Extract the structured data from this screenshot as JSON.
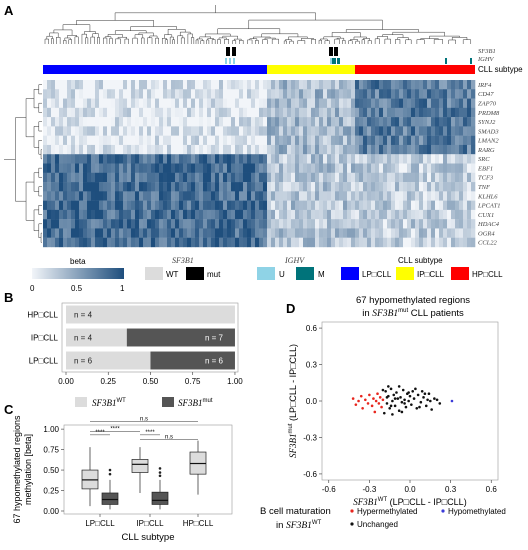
{
  "panel_labels": {
    "a": "A",
    "b": "B",
    "c": "C",
    "d": "D"
  },
  "heatmap": {
    "annotation_rows": [
      "SF3B1",
      "IGHV",
      "CLL subtype"
    ],
    "genes": [
      "IRF4",
      "CD47",
      "ZAP70",
      "PRDM8",
      "SYNJ2",
      "SMAD3",
      "LMAN2",
      "RARG",
      "SRC",
      "EBF1",
      "TCF3",
      "TNF",
      "KLHL6",
      "LPCAT1",
      "CUX1",
      "HDAC4",
      "OGR4",
      "CCL22"
    ],
    "subtype_fractions": {
      "LP-CLL": 0.52,
      "IP-CLL": 0.2,
      "HP-CLL": 0.28
    },
    "colors": {
      "low": "#f2f5f9",
      "high": "#1e4e7d",
      "lp": "#0000ff",
      "ip": "#ffff00",
      "hp": "#ff0000",
      "wt": "#dcdcdc",
      "mut": "#000000",
      "u": "#8fd3e6",
      "m": "#00737a"
    }
  },
  "legends": {
    "beta_title": "beta",
    "beta_ticks": [
      "0",
      "0.5",
      "1"
    ],
    "sf3b1_title": "SF3B1",
    "sf3b1_wt": "WT",
    "sf3b1_mut": "mut",
    "ighv_title": "IGHV",
    "ighv_u": "U",
    "ighv_m": "M",
    "cll_title": "CLL subtype",
    "cll_lp": "LP□CLL",
    "cll_ip": "IP□CLL",
    "cll_hp": "HP□CLL"
  },
  "chart_data": [
    {
      "type": "bar",
      "panel": "B",
      "stacked": true,
      "orientation": "horizontal",
      "categories": [
        "HP□CLL",
        "IP□CLL",
        "LP□CLL"
      ],
      "series": [
        {
          "name": "SF3B1 WT",
          "values": [
            1.0,
            0.36,
            0.5
          ],
          "counts": [
            "n = 4",
            "n = 4",
            "n = 6"
          ]
        },
        {
          "name": "SF3B1 mut",
          "values": [
            0.0,
            0.64,
            0.5
          ],
          "counts": [
            "",
            "n = 7",
            "n = 6"
          ]
        }
      ],
      "xlim": [
        0,
        1
      ],
      "xticks": [
        "0.00",
        "0.25",
        "0.50",
        "0.75",
        "1.00"
      ],
      "legend": {
        "wt_label": "SF3B1",
        "wt_sup": "WT",
        "mut_label": "SF3B1",
        "mut_sup": "mut"
      }
    },
    {
      "type": "box",
      "panel": "C",
      "title": "",
      "ylabel_line1": "67 hypomethylated regions",
      "ylabel_line2": "methylation [beta]",
      "xlabel": "CLL subtype",
      "categories": [
        "LP□CLL",
        "IP□CLL",
        "HP□CLL"
      ],
      "ylim": [
        0,
        1
      ],
      "yticks": [
        "0.00",
        "0.25",
        "0.50",
        "0.75",
        "1.00"
      ],
      "boxes": [
        {
          "group": "LP□CLL",
          "kind": "WT",
          "min": 0.06,
          "q1": 0.27,
          "median": 0.38,
          "q3": 0.5,
          "max": 0.78
        },
        {
          "group": "LP□CLL",
          "kind": "mut",
          "min": 0.02,
          "q1": 0.08,
          "median": 0.14,
          "q3": 0.22,
          "max": 0.38,
          "outliers": [
            0.45,
            0.5
          ]
        },
        {
          "group": "IP□CLL",
          "kind": "WT",
          "min": 0.22,
          "q1": 0.47,
          "median": 0.57,
          "q3": 0.63,
          "max": 0.78
        },
        {
          "group": "IP□CLL",
          "kind": "mut",
          "min": 0.02,
          "q1": 0.08,
          "median": 0.13,
          "q3": 0.23,
          "max": 0.38,
          "outliers": [
            0.43,
            0.47,
            0.52
          ]
        },
        {
          "group": "HP□CLL",
          "kind": "WT",
          "min": 0.2,
          "q1": 0.45,
          "median": 0.58,
          "q3": 0.72,
          "max": 0.86
        }
      ],
      "significance": [
        "****",
        "****",
        "****",
        "n.s",
        "n.s"
      ]
    },
    {
      "type": "scatter",
      "panel": "D",
      "title_line1": "67 hypomethylated regions",
      "title_line2_italic": "SF3B1",
      "title_line2_sup": "mut",
      "title_line2_pre": "in ",
      "title_line2_post": " CLL patients",
      "xlabel_italic": "SF3B1",
      "xlabel_sup": "WT",
      "xlabel_rest": "(LP□CLL - IP□CLL)",
      "ylabel_italic": "SF3B1",
      "ylabel_sup": "mut",
      "ylabel_rest": "(LP□CLL - IP□CLL)",
      "xlim": [
        -0.65,
        0.65
      ],
      "ylim": [
        -0.65,
        0.65
      ],
      "xticks": [
        "-0.6",
        "-0.3",
        "0.0",
        "0.3",
        "0.6"
      ],
      "yticks": [
        "-0.6",
        "-0.3",
        "0.0",
        "0.3",
        "0.6"
      ],
      "series": [
        {
          "name": "Hypermethylated",
          "color": "#e8261e",
          "points": [
            [
              -0.42,
              0.02
            ],
            [
              -0.4,
              -0.03
            ],
            [
              -0.38,
              0.0
            ],
            [
              -0.36,
              0.04
            ],
            [
              -0.35,
              -0.06
            ],
            [
              -0.33,
              0.01
            ],
            [
              -0.31,
              -0.02
            ],
            [
              -0.3,
              0.05
            ],
            [
              -0.28,
              -0.04
            ],
            [
              -0.27,
              0.02
            ],
            [
              -0.26,
              -0.09
            ],
            [
              -0.25,
              0.0
            ],
            [
              -0.24,
              0.06
            ],
            [
              -0.23,
              -0.02
            ],
            [
              -0.22,
              0.03
            ],
            [
              -0.21,
              -0.05
            ],
            [
              -0.2,
              0.01
            ]
          ]
        },
        {
          "name": "Hypomethylated",
          "color": "#3a3ad8",
          "points": [
            [
              0.31,
              0.0
            ]
          ]
        },
        {
          "name": "Unchanged",
          "color": "#111111",
          "points": [
            [
              -0.18,
              0.08
            ],
            [
              -0.17,
              -0.02
            ],
            [
              -0.16,
              0.04
            ],
            [
              -0.15,
              -0.06
            ],
            [
              -0.14,
              0.1
            ],
            [
              -0.13,
              0.0
            ],
            [
              -0.12,
              0.05
            ],
            [
              -0.11,
              -0.04
            ],
            [
              -0.1,
              0.07
            ],
            [
              -0.09,
              0.02
            ],
            [
              -0.08,
              -0.08
            ],
            [
              -0.07,
              0.03
            ],
            [
              -0.06,
              -0.01
            ],
            [
              -0.05,
              0.09
            ],
            [
              -0.04,
              0.01
            ],
            [
              -0.03,
              -0.05
            ],
            [
              -0.02,
              0.06
            ],
            [
              -0.01,
              0.0
            ],
            [
              0.0,
              0.04
            ],
            [
              0.01,
              -0.03
            ],
            [
              0.02,
              0.08
            ],
            [
              0.03,
              0.02
            ],
            [
              0.05,
              -0.06
            ],
            [
              0.06,
              0.05
            ],
            [
              0.08,
              -0.01
            ],
            [
              0.1,
              0.03
            ],
            [
              0.12,
              -0.04
            ],
            [
              0.14,
              0.06
            ],
            [
              0.15,
              0.0
            ],
            [
              0.16,
              -0.07
            ],
            [
              -0.19,
              -0.1
            ],
            [
              -0.2,
              0.09
            ],
            [
              -0.13,
              -0.11
            ],
            [
              -0.06,
              -0.09
            ],
            [
              0.18,
              0.02
            ],
            [
              0.2,
              0.01
            ],
            [
              -0.16,
              0.12
            ],
            [
              -0.08,
              0.12
            ],
            [
              0.04,
              0.1
            ],
            [
              0.09,
              0.08
            ],
            [
              -0.11,
              0.02
            ],
            [
              -0.04,
              -0.02
            ],
            [
              0.07,
              -0.05
            ],
            [
              0.11,
              0.06
            ],
            [
              -0.17,
              0.03
            ],
            [
              -0.01,
              0.07
            ],
            [
              0.13,
              0.01
            ],
            [
              0.22,
              -0.02
            ],
            [
              -0.14,
              -0.04
            ]
          ]
        }
      ]
    }
  ],
  "legend_d": {
    "title_line1": "B cell maturation",
    "title_line2_pre": "in ",
    "title_line2_italic": "SF3B1",
    "title_line2_sup": "WT",
    "hyper": "Hypermethylated",
    "hypo": "Hypomethylated",
    "unchanged": "Unchanged"
  }
}
